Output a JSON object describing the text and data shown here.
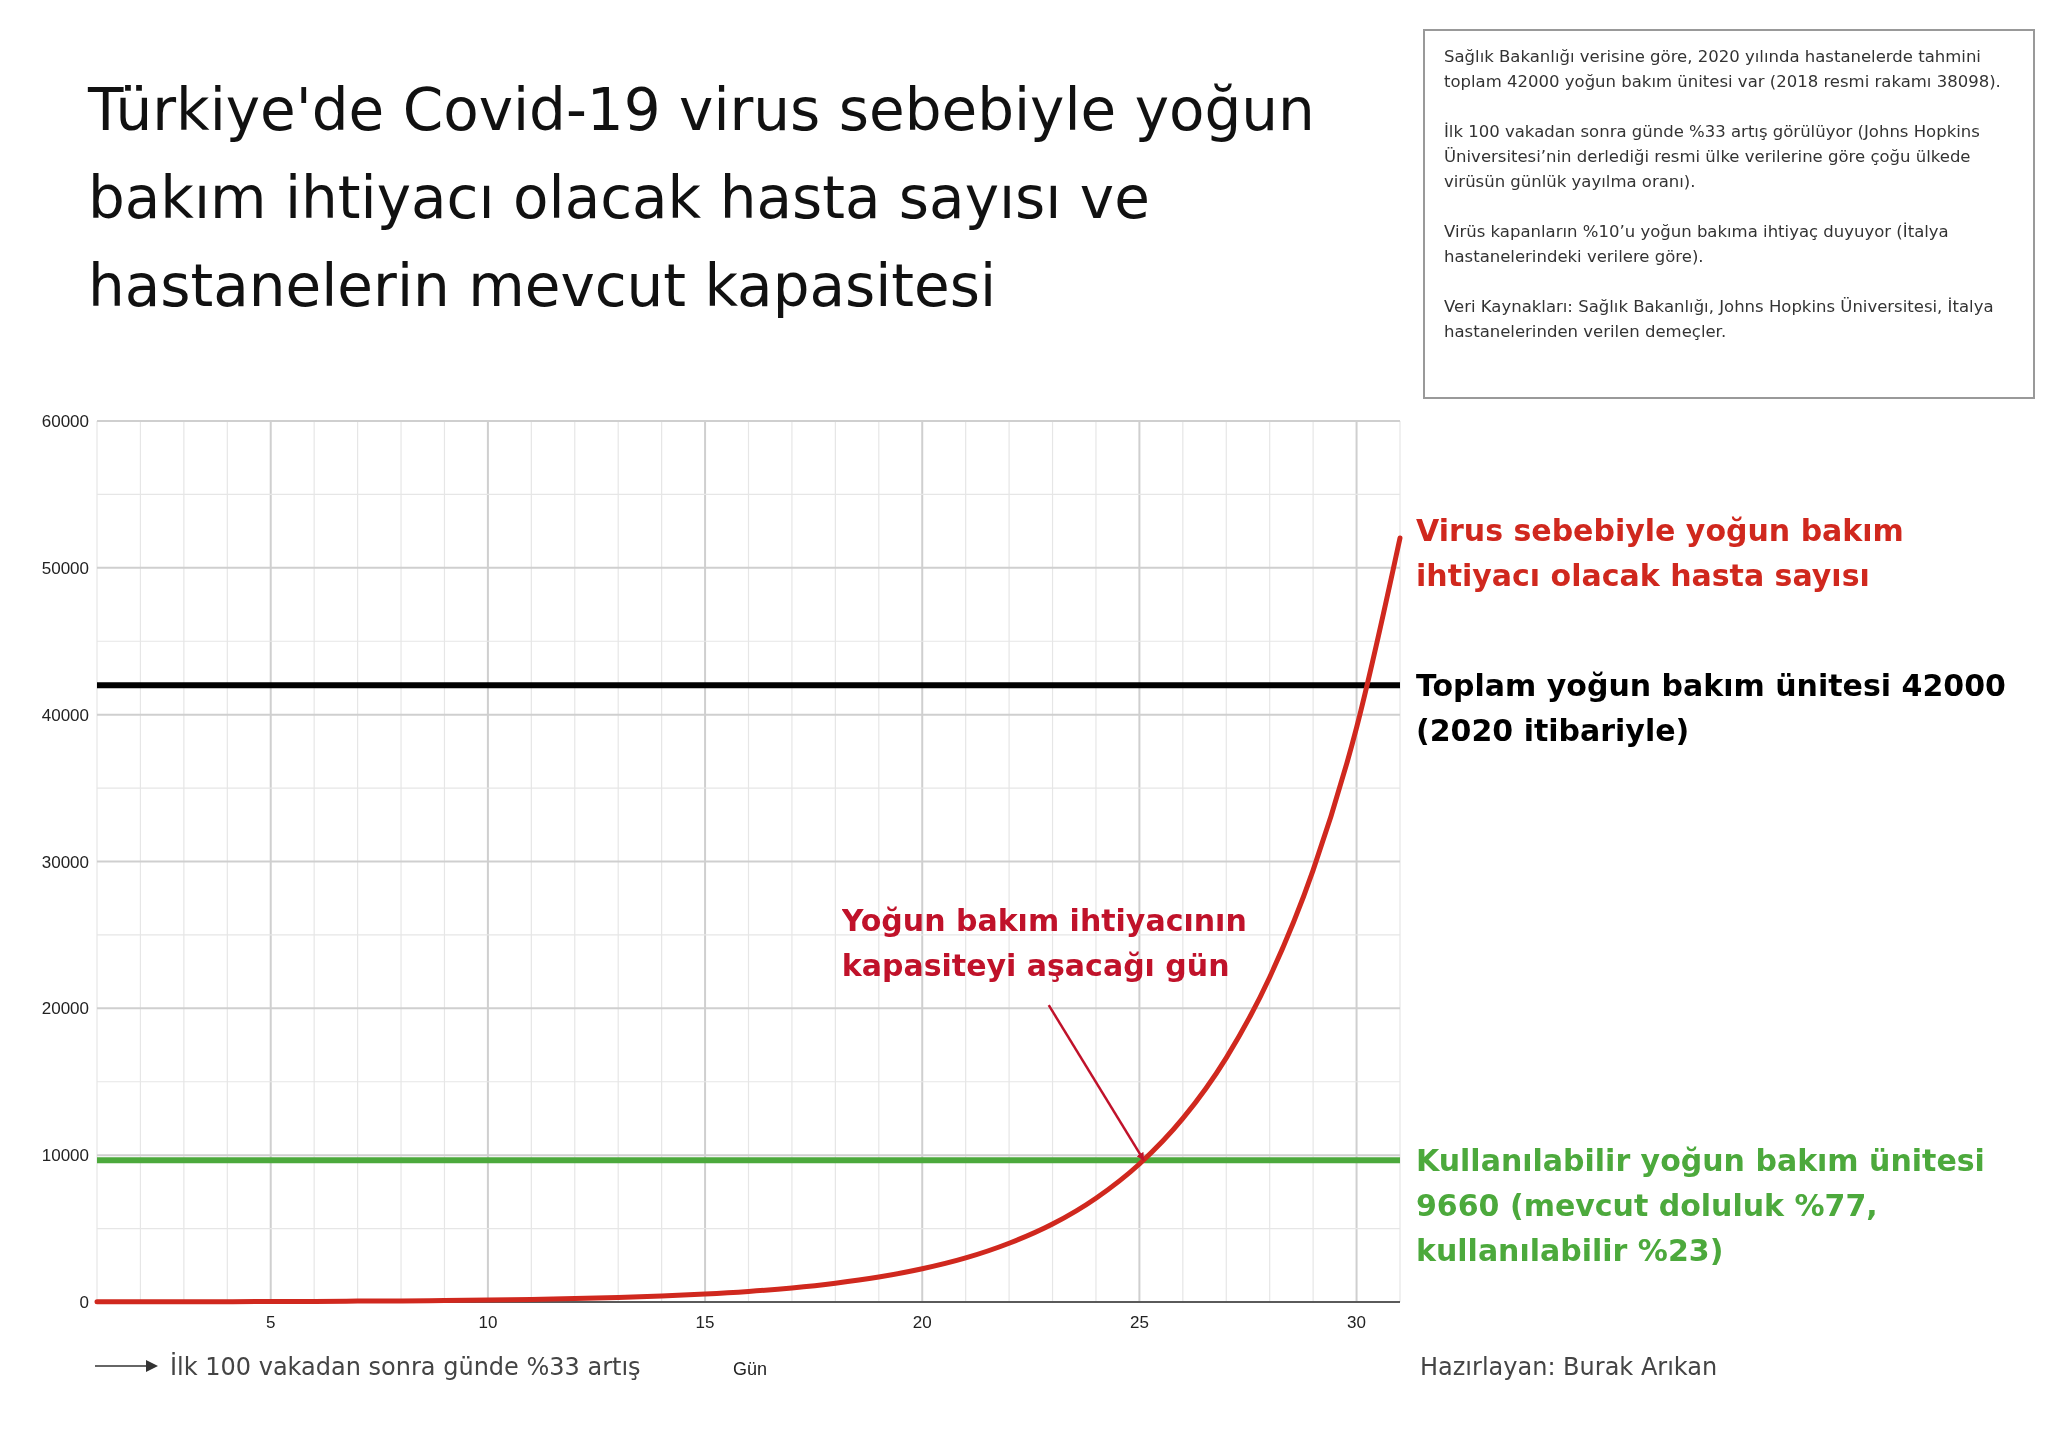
{
  "chart_data": {
    "type": "line",
    "title": "Türkiye'de Covid-19 virus sebebiyle yoğun bakım ihtiyacı olacak hasta sayısı ve hastanelerin mevcut kapasitesi",
    "xlabel": "Gün",
    "x": [
      1,
      2,
      3,
      4,
      5,
      6,
      7,
      8,
      9,
      10,
      11,
      12,
      13,
      14,
      15,
      16,
      17,
      18,
      19,
      20,
      21,
      22,
      23,
      24,
      25,
      26,
      27,
      28,
      29,
      30,
      31
    ],
    "series": [
      {
        "name": "Virus sebebiyle yoğun bakım ihtiyacı olacak hasta sayısı",
        "color": "#d0281e",
        "values": [
          10,
          10,
          20,
          20,
          30,
          40,
          60,
          70,
          100,
          130,
          170,
          230,
          310,
          410,
          540,
          720,
          960,
          1280,
          1700,
          2260,
          3000,
          4000,
          5310,
          7070,
          9400,
          12500,
          16630,
          22120,
          29410,
          39120,
          52030
        ]
      }
    ],
    "xlim": [
      1,
      31
    ],
    "xticks": [
      5,
      10,
      15,
      20,
      25,
      30
    ],
    "ylim": [
      0,
      60000
    ],
    "yticks": [
      0,
      10000,
      20000,
      30000,
      40000,
      50000,
      60000
    ],
    "grid": true,
    "line_style": "solid",
    "ref_lines": [
      {
        "axis": "y",
        "value": 42000,
        "label": "Toplam yoğun bakım ünitesi 42000 (2020 itibariyle)",
        "color": "#000000"
      },
      {
        "axis": "y",
        "value": 9660,
        "label": "Kullanılabilir yoğun bakım ünitesi 9660 (mevcut doluluk %77, kullanılabilir %23)",
        "color": "#4ca93c"
      }
    ],
    "annotations": [
      "Sağlık Bakanlığı verisine göre, 2020 yılında hastanelerde tahmini toplam 42000 yoğun bakım ünitesi var (2018 resmi rakamı 38098).",
      "İlk 100 vakadan sonra günde %33 artış görülüyor (Johns Hopkins Üniversitesi’nin derlediği resmi ülke verilerine göre çoğu ülkede virüsün günlük yayılma oranı).",
      "Virüs kapanların %10’u yoğun bakıma ihtiyaç duyuyor (İtalya hastanelerindeki verilere göre).",
      "Veri Kaynakları: Sağlık Bakanlığı, Johns Hopkins Üniversitesi, İtalya hastanelerinden verilen demeçler.",
      "İlk 100 vakadan sonra günde %33 artış",
      "Hazırlayan: Burak Arıkan",
      {
        "text": "Yoğun bakım ihtiyacının kapasiteyi aşacağı gün",
        "x": 25.1,
        "y": 9660
      }
    ]
  }
}
